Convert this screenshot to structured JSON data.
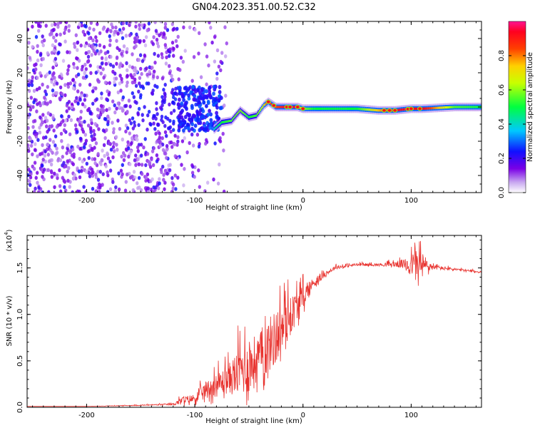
{
  "title": "GN04.2023.351.00.52.C32",
  "chart_data": [
    {
      "type": "heatmap",
      "xlabel": "Height of straight line (km)",
      "ylabel": "Frequency (Hz)",
      "xlim": [
        -255,
        165
      ],
      "ylim": [
        -50,
        50
      ],
      "xticks": [
        -200,
        -100,
        0,
        100
      ],
      "yticks": [
        -40,
        -20,
        0,
        20,
        40
      ],
      "colorbar": {
        "label": "Normalized spectral amplitude",
        "range": [
          0.0,
          1.0
        ],
        "ticks": [
          "0.0",
          "0.2",
          "0.4",
          "0.6",
          "0.8"
        ],
        "tick_values": [
          0.0,
          0.2,
          0.4,
          0.6,
          0.8
        ],
        "colormap": "rainbow"
      },
      "track": {
        "x": [
          -82,
          -75,
          -66,
          -58,
          -50,
          -43,
          -36,
          -32,
          -25,
          -15,
          -5,
          0,
          10,
          30,
          50,
          70,
          85,
          100,
          110,
          140,
          165
        ],
        "freq": [
          -13,
          -9,
          -8,
          -2,
          -6,
          -5,
          1,
          3,
          0,
          0,
          0,
          -1,
          -1,
          -1,
          -1,
          -2,
          -2,
          -1,
          -1,
          0,
          0
        ],
        "amplitude": [
          0.4,
          0.5,
          0.55,
          0.6,
          0.5,
          0.55,
          0.7,
          0.9,
          0.85,
          0.95,
          0.95,
          0.6,
          0.5,
          0.5,
          0.5,
          0.75,
          0.95,
          0.9,
          0.95,
          0.55,
          0.5
        ]
      }
    },
    {
      "type": "line",
      "xlabel": "Height of straight line (km)",
      "ylabel": "SNR (10 * v/v)",
      "scale_label": "(x10",
      "scale_exp": "4",
      "scale_suffix": ")",
      "xlim": [
        -255,
        165
      ],
      "ylim": [
        0,
        1.85
      ],
      "xticks": [
        -200,
        -100,
        0,
        100
      ],
      "yticks": [
        0.0,
        0.5,
        1.0,
        1.5
      ],
      "ytick_labels": [
        "0.0",
        "0.5",
        "1.0",
        "1.5"
      ],
      "color": "#e8322e",
      "series": [
        {
          "name": "SNR",
          "x": [
            -255,
            -200,
            -150,
            -120,
            -112,
            -100,
            -90,
            -80,
            -70,
            -60,
            -50,
            -40,
            -30,
            -20,
            -10,
            0,
            10,
            20,
            30,
            50,
            70,
            90,
            100,
            105,
            110,
            120,
            140,
            165
          ],
          "base": [
            0.01,
            0.01,
            0.02,
            0.03,
            0.06,
            0.08,
            0.15,
            0.2,
            0.25,
            0.3,
            0.35,
            0.45,
            0.6,
            0.75,
            0.95,
            1.15,
            1.32,
            1.42,
            1.5,
            1.53,
            1.53,
            1.53,
            1.5,
            1.5,
            1.48,
            1.5,
            1.48,
            1.45
          ],
          "jitter": [
            0.0,
            0.0,
            0.01,
            0.02,
            0.08,
            0.1,
            0.2,
            0.25,
            0.3,
            0.5,
            0.6,
            0.55,
            0.6,
            0.55,
            0.4,
            0.25,
            0.12,
            0.05,
            0.04,
            0.03,
            0.03,
            0.08,
            0.2,
            0.35,
            0.3,
            0.05,
            0.03,
            0.02
          ]
        }
      ]
    }
  ]
}
